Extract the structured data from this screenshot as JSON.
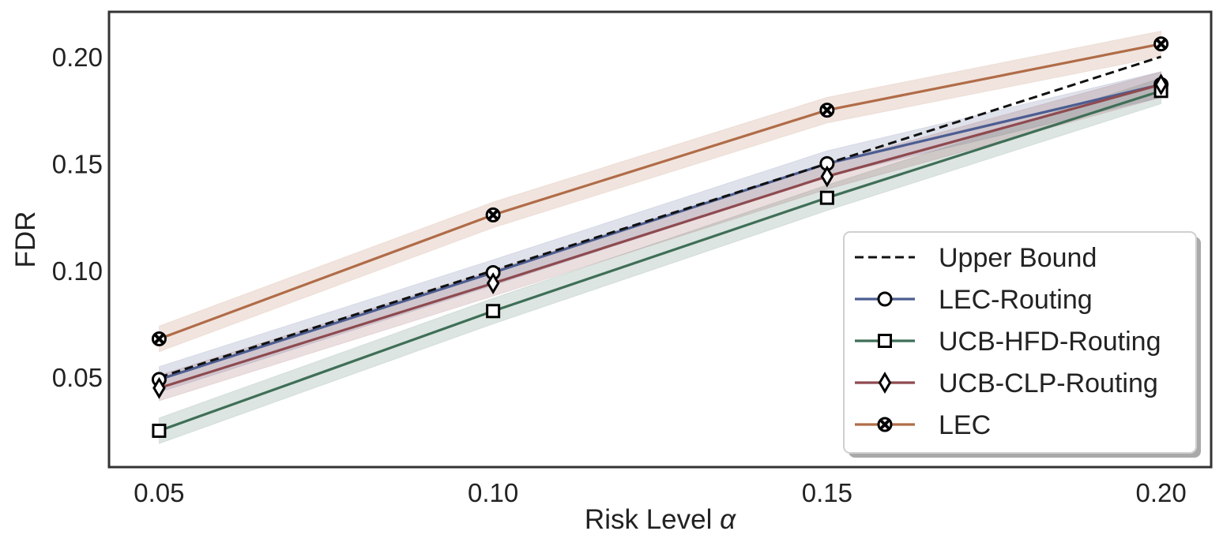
{
  "chart_data": {
    "type": "line",
    "title": "",
    "xlabel": "Risk Level",
    "xlabel_symbol": "α",
    "ylabel": "FDR",
    "x": [
      0.05,
      0.1,
      0.15,
      0.2
    ],
    "x_tick_labels": [
      "0.05",
      "0.10",
      "0.15",
      "0.20"
    ],
    "y_ticks": [
      0.05,
      0.1,
      0.15,
      0.2
    ],
    "y_tick_labels": [
      "0.05",
      "0.10",
      "0.15",
      "0.20"
    ],
    "xlim": [
      0.0425,
      0.2075
    ],
    "ylim": [
      0.008,
      0.221
    ],
    "grid": false,
    "legend_position": "lower-right",
    "series": [
      {
        "name": "Upper Bound",
        "style": "dashed",
        "marker": "none",
        "color": "#111111",
        "values": [
          0.05,
          0.1,
          0.15,
          0.2
        ],
        "band": 0
      },
      {
        "name": "LEC-Routing",
        "style": "solid",
        "marker": "circle",
        "color": "#4c5d91",
        "values": [
          0.049,
          0.099,
          0.15,
          0.187
        ],
        "band": 0.006
      },
      {
        "name": "UCB-HFD-Routing",
        "style": "solid",
        "marker": "square",
        "color": "#3f6e57",
        "values": [
          0.025,
          0.081,
          0.134,
          0.184
        ],
        "band": 0.006
      },
      {
        "name": "UCB-CLP-Routing",
        "style": "solid",
        "marker": "diamond",
        "color": "#8e4a4f",
        "values": [
          0.045,
          0.094,
          0.144,
          0.187
        ],
        "band": 0.006
      },
      {
        "name": "LEC",
        "style": "solid",
        "marker": "x-circle",
        "color": "#b06c48",
        "values": [
          0.068,
          0.126,
          0.175,
          0.206
        ],
        "band": 0.006
      }
    ]
  }
}
